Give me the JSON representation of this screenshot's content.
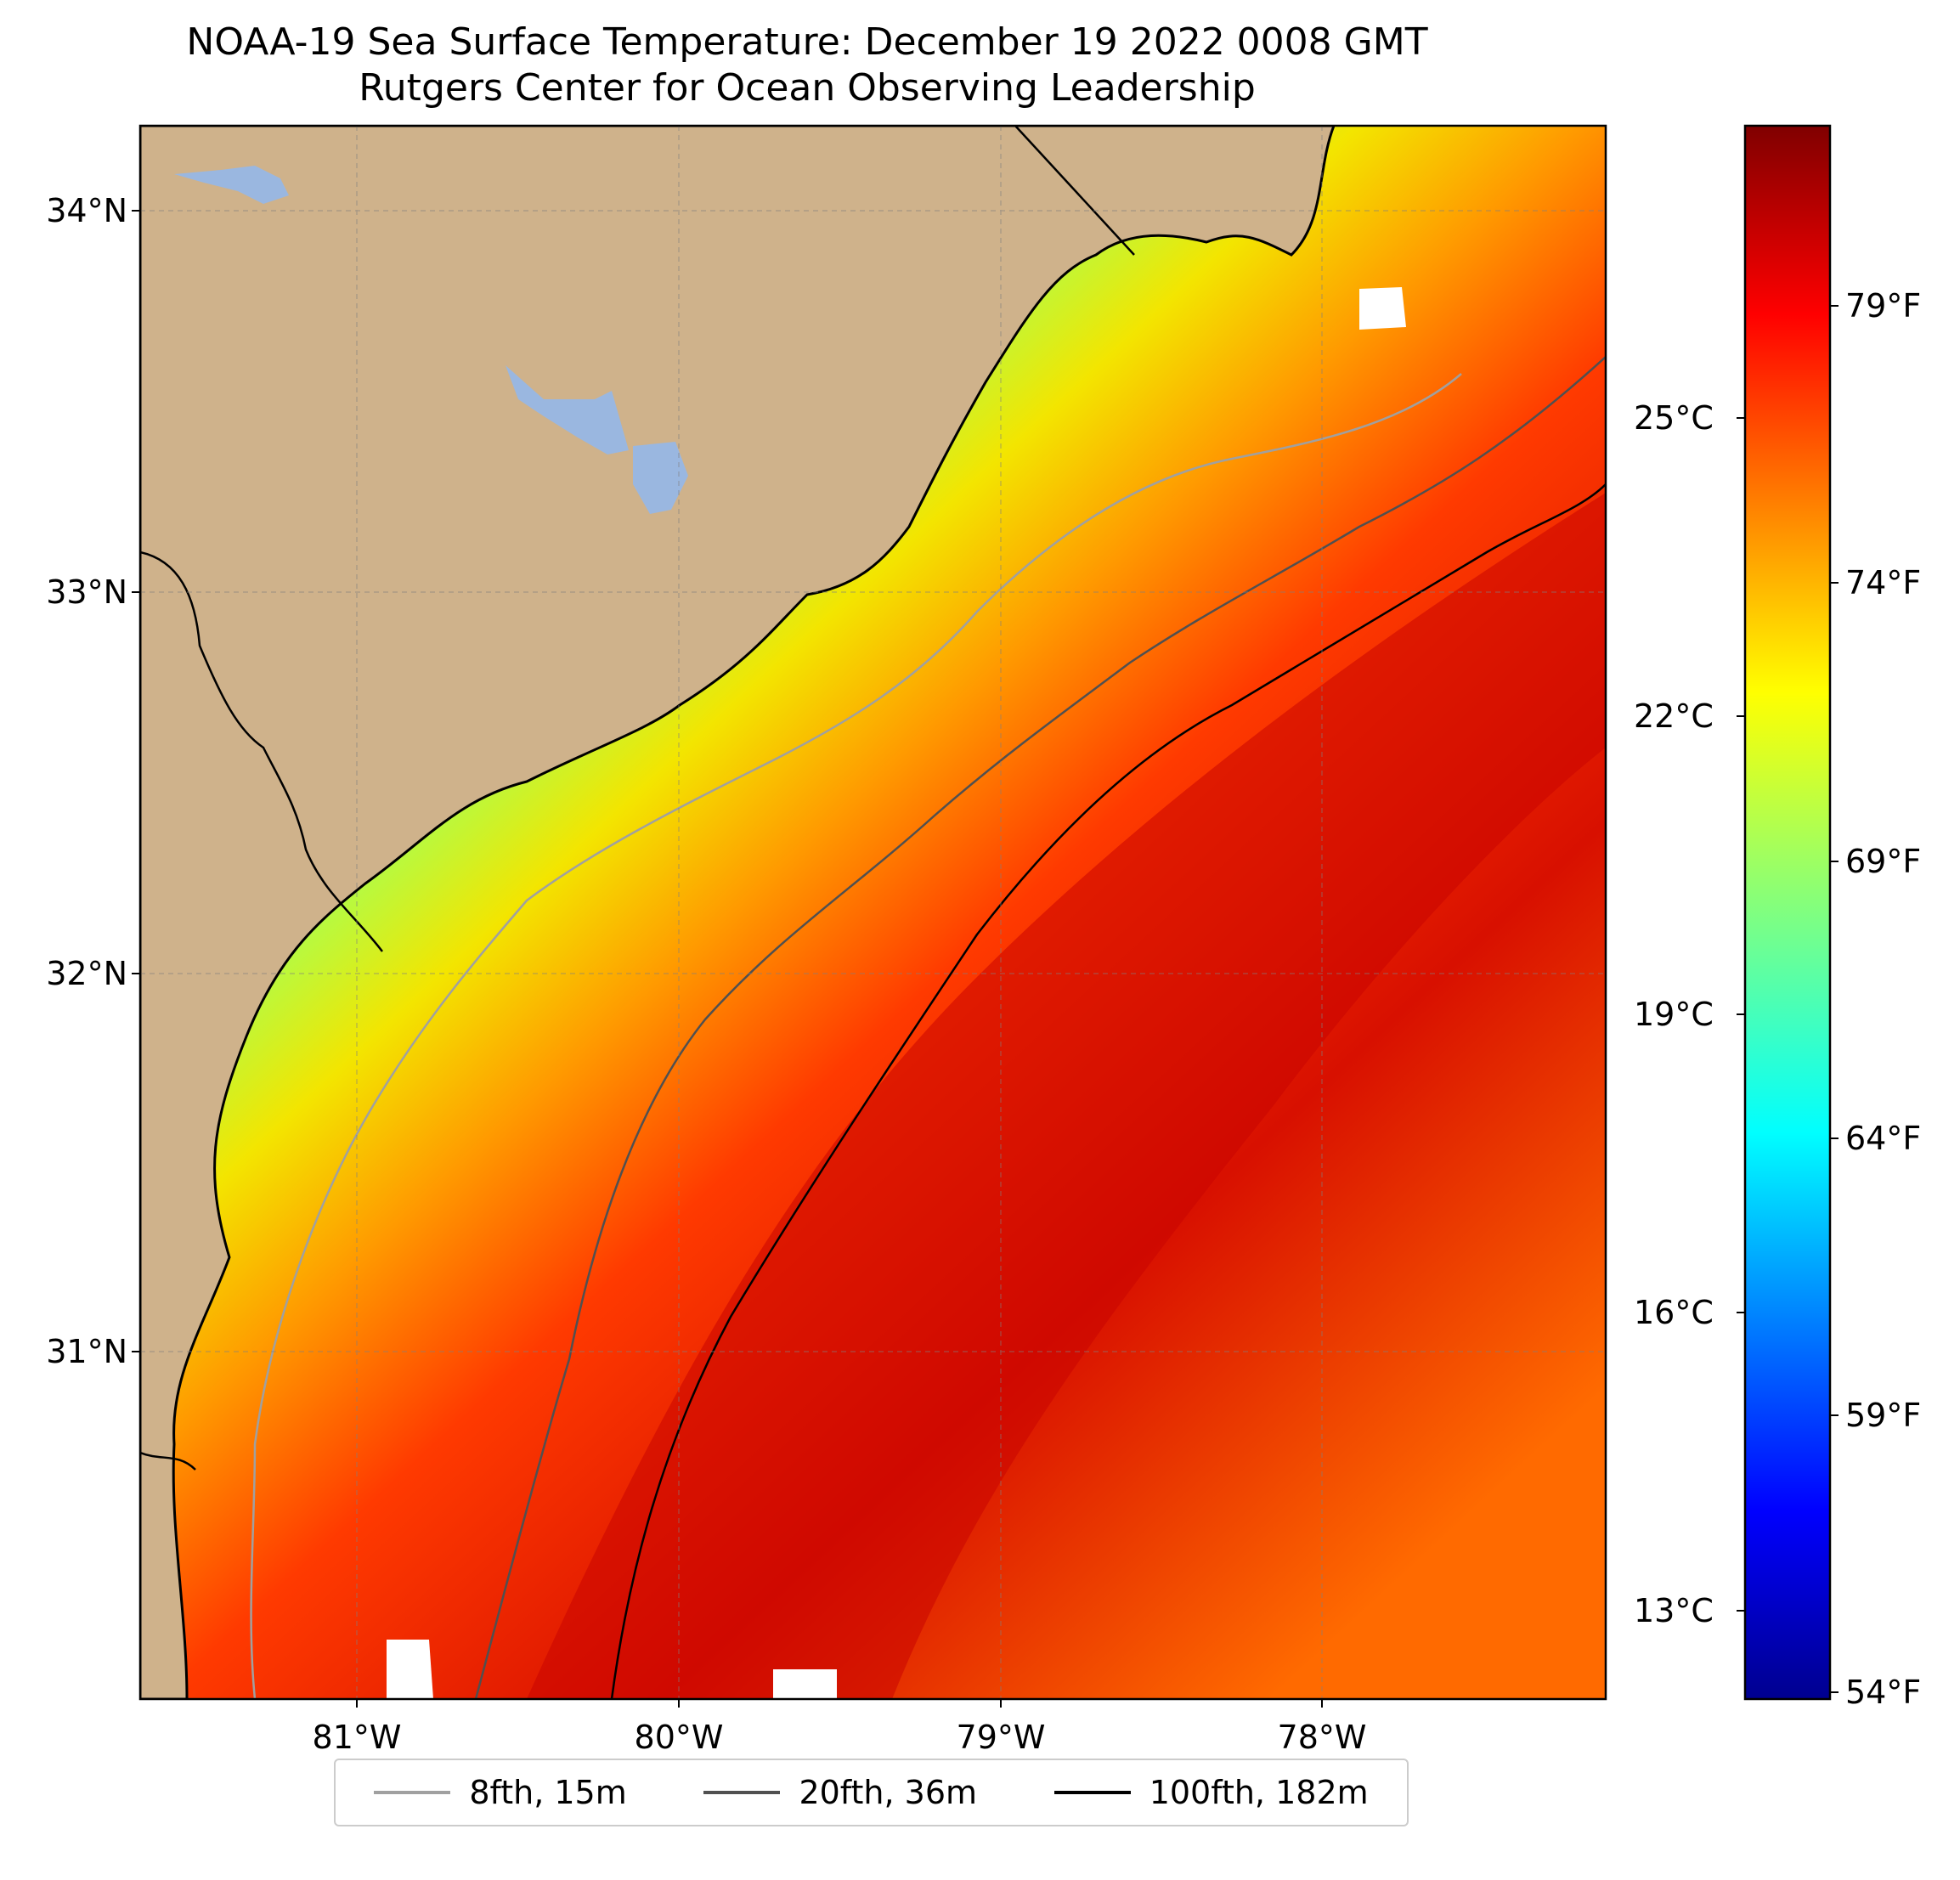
{
  "title": "NOAA-19 Sea Surface Temperature: December 19 2022 0008 GMT",
  "subtitle": "Rutgers Center for Ocean Observing Leadership",
  "map": {
    "land_color": "#cfb28b",
    "water_body_color": "#9ab7e0",
    "lat_labels": [
      "34°N",
      "33°N",
      "32°N",
      "31°N"
    ],
    "lon_labels": [
      "81°W",
      "80°W",
      "79°W",
      "78°W"
    ]
  },
  "colorbar": {
    "celsius_labels": [
      "25°C",
      "22°C",
      "19°C",
      "16°C",
      "13°C"
    ],
    "fahrenheit_labels": [
      "79°F",
      "74°F",
      "69°F",
      "64°F",
      "59°F",
      "54°F"
    ],
    "colormap": "jet"
  },
  "legend": {
    "items": [
      {
        "label": "8fth, 15m",
        "color": "#a0a0a0"
      },
      {
        "label": "20fth, 36m",
        "color": "#505050"
      },
      {
        "label": "100fth, 182m",
        "color": "#000000"
      }
    ]
  }
}
